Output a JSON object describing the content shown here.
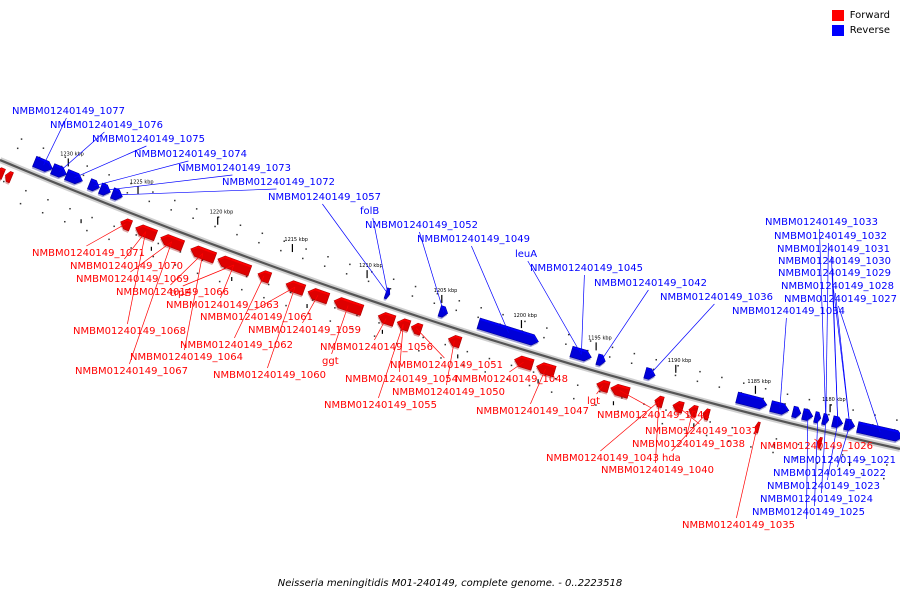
{
  "legend": {
    "forward_label": "Forward",
    "reverse_label": "Reverse",
    "forward_color": "#ff0000",
    "reverse_color": "#0000ff"
  },
  "caption": "Neisseria meningitidis M01-240149, complete genome. - 0..2223518",
  "scale_ticks": [
    "1230 kbp",
    "1225 kbp",
    "1220 kbp",
    "1215 kbp",
    "1210 kbp",
    "1205 kbp",
    "1200 kbp",
    "1195 kbp",
    "1190 kbp",
    "1185 kbp",
    "1180 kbp"
  ],
  "reverse_labels": [
    "NMBM01240149_1077",
    "NMBM01240149_1076",
    "NMBM01240149_1075",
    "NMBM01240149_1074",
    "NMBM01240149_1073",
    "NMBM01240149_1072",
    "NMBM01240149_1057",
    "folB",
    "NMBM01240149_1052",
    "NMBM01240149_1049",
    "leuA",
    "NMBM01240149_1045",
    "NMBM01240149_1042",
    "NMBM01240149_1036",
    "NMBM01240149_1034",
    "NMBM01240149_1033",
    "NMBM01240149_1032",
    "NMBM01240149_1031",
    "NMBM01240149_1030",
    "NMBM01240149_1029",
    "NMBM01240149_1028",
    "NMBM01240149_1027",
    "NMBM01240149_1021",
    "NMBM01240149_1022",
    "NMBM01240149_1023",
    "NMBM01240149_1024",
    "NMBM01240149_1025"
  ],
  "forward_labels": [
    "NMBM01240149_1071",
    "NMBM01240149_1070",
    "NMBM01240149_1069",
    "NMBM01240149_1066",
    "trpE",
    "NMBM01240149_1063",
    "NMBM01240149_1068",
    "NMBM01240149_1061",
    "NMBM01240149_1062",
    "NMBM01240149_1059",
    "NMBM01240149_1064",
    "NMBM01240149_1067",
    "NMBM01240149_1060",
    "NMBM01240149_1056",
    "ggt",
    "NMBM01240149_1051",
    "NMBM01240149_1054",
    "NMBM01240149_1050",
    "NMBM01240149_1055",
    "NMBM01240149_1048",
    "NMBM01240149_1047",
    "lgt",
    "NMBM01240149_1041",
    "NMBM01240149_1037",
    "NMBM01240149_1038",
    "NMBM01240149_1043",
    "hda",
    "NMBM01240149_1040",
    "NMBM01240149_1026",
    "NMBM01240149_1035"
  ]
}
